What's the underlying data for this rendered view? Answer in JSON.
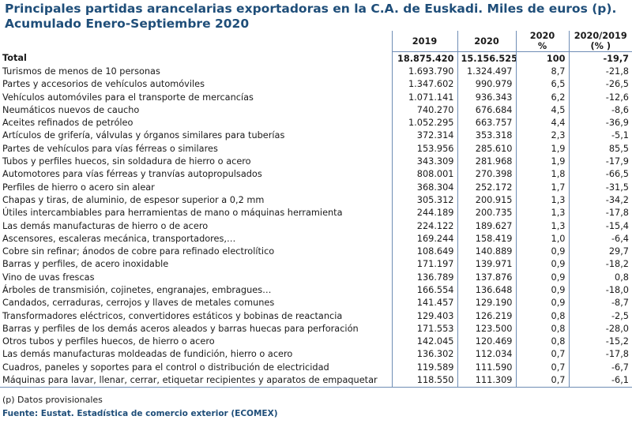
{
  "title_line1": "Principales partidas arancelarias exportadoras en la C.A. de Euskadi. Miles de euros (p).",
  "title_line2": "Acumulado Enero-Septiembre 2020",
  "headers": {
    "col_2019": "2019",
    "col_2020": "2020",
    "col_pct_year": "2020",
    "col_pct_unit": "%",
    "col_var_label": "2020/2019",
    "col_var_unit": "(% )"
  },
  "total": {
    "label": "Total",
    "v2019": "18.875.420",
    "v2020": "15.156.525",
    "pct": "100",
    "var": "-19,7"
  },
  "rows": [
    {
      "label": "Turismos de menos de  10 personas",
      "v2019": "1.693.790",
      "v2020": "1.324.497",
      "pct": "8,7",
      "var": "-21,8"
    },
    {
      "label": "Partes y accesorios de vehículos automóviles",
      "v2019": "1.347.602",
      "v2020": "990.979",
      "pct": "6,5",
      "var": "-26,5"
    },
    {
      "label": "Vehículos automóviles para el transporte de mercancías",
      "v2019": "1.071.141",
      "v2020": "936.343",
      "pct": "6,2",
      "var": "-12,6"
    },
    {
      "label": "Neumáticos nuevos de caucho",
      "v2019": "740.270",
      "v2020": "676.684",
      "pct": "4,5",
      "var": "-8,6"
    },
    {
      "label": "Aceites refinados de petróleo",
      "v2019": "1.052.295",
      "v2020": "663.757",
      "pct": "4,4",
      "var": "-36,9"
    },
    {
      "label": "Artículos de grifería, válvulas y órganos similares para tuberías",
      "v2019": "372.314",
      "v2020": "353.318",
      "pct": "2,3",
      "var": "-5,1"
    },
    {
      "label": "Partes de vehículos para vías férreas o similares",
      "v2019": "153.956",
      "v2020": "285.610",
      "pct": "1,9",
      "var": "85,5"
    },
    {
      "label": "Tubos y perfiles huecos, sin soldadura de hierro o acero",
      "v2019": "343.309",
      "v2020": "281.968",
      "pct": "1,9",
      "var": "-17,9"
    },
    {
      "label": "Automotores para vías férreas y tranvías autopropulsados",
      "v2019": "808.001",
      "v2020": "270.398",
      "pct": "1,8",
      "var": "-66,5"
    },
    {
      "label": "Perfiles de hierro o acero sin alear",
      "v2019": "368.304",
      "v2020": "252.172",
      "pct": "1,7",
      "var": "-31,5"
    },
    {
      "label": "Chapas y tiras, de aluminio, de espesor superior a 0,2 mm",
      "v2019": "305.312",
      "v2020": "200.915",
      "pct": "1,3",
      "var": "-34,2"
    },
    {
      "label": "Útiles intercambiables para herramientas de mano o máquinas herramienta",
      "v2019": "244.189",
      "v2020": "200.735",
      "pct": "1,3",
      "var": "-17,8"
    },
    {
      "label": "Las demás manufacturas de hierro o de acero",
      "v2019": "224.122",
      "v2020": "189.627",
      "pct": "1,3",
      "var": "-15,4"
    },
    {
      "label": "Ascensores, escaleras mecánica, transportadores,…",
      "v2019": "169.244",
      "v2020": "158.419",
      "pct": "1,0",
      "var": "-6,4"
    },
    {
      "label": "Cobre sin refinar; ánodos de cobre para refinado electrolítico",
      "v2019": "108.649",
      "v2020": "140.889",
      "pct": "0,9",
      "var": "29,7"
    },
    {
      "label": "Barras y perfiles, de acero inoxidable",
      "v2019": "171.197",
      "v2020": "139.971",
      "pct": "0,9",
      "var": "-18,2"
    },
    {
      "label": "Vino de uvas frescas",
      "v2019": "136.789",
      "v2020": "137.876",
      "pct": "0,9",
      "var": "0,8"
    },
    {
      "label": "Árboles de transmisión, cojinetes, engranajes, embragues…",
      "v2019": "166.554",
      "v2020": "136.648",
      "pct": "0,9",
      "var": "-18,0"
    },
    {
      "label": "Candados, cerraduras, cerrojos y llaves de metales comunes",
      "v2019": "141.457",
      "v2020": "129.190",
      "pct": "0,9",
      "var": "-8,7"
    },
    {
      "label": "Transformadores eléctricos, convertidores estáticos y bobinas de reactancia",
      "v2019": "129.403",
      "v2020": "126.219",
      "pct": "0,8",
      "var": "-2,5"
    },
    {
      "label": "Barras y perfiles de los demás aceros aleados y barras huecas para perforación",
      "v2019": "171.553",
      "v2020": "123.500",
      "pct": "0,8",
      "var": "-28,0"
    },
    {
      "label": "Otros tubos y perfiles huecos, de hierro o acero",
      "v2019": "142.045",
      "v2020": "120.469",
      "pct": "0,8",
      "var": "-15,2"
    },
    {
      "label": "Las demás manufacturas moldeadas de fundición, hierro o acero",
      "v2019": "136.302",
      "v2020": "112.034",
      "pct": "0,7",
      "var": "-17,8"
    },
    {
      "label": "Cuadros, paneles y soportes para el control o distribución de electricidad",
      "v2019": "119.589",
      "v2020": "111.590",
      "pct": "0,7",
      "var": "-6,7"
    },
    {
      "label": "Máquinas para lavar, llenar, cerrar, etiquetar recipientes  y aparatos de empaquetar",
      "v2019": "118.550",
      "v2020": "111.309",
      "pct": "0,7",
      "var": "-6,1"
    }
  ],
  "note": "(p) Datos provisionales",
  "source": "Fuente: Eustat. Estadística de comercio exterior (ECOMEX)"
}
